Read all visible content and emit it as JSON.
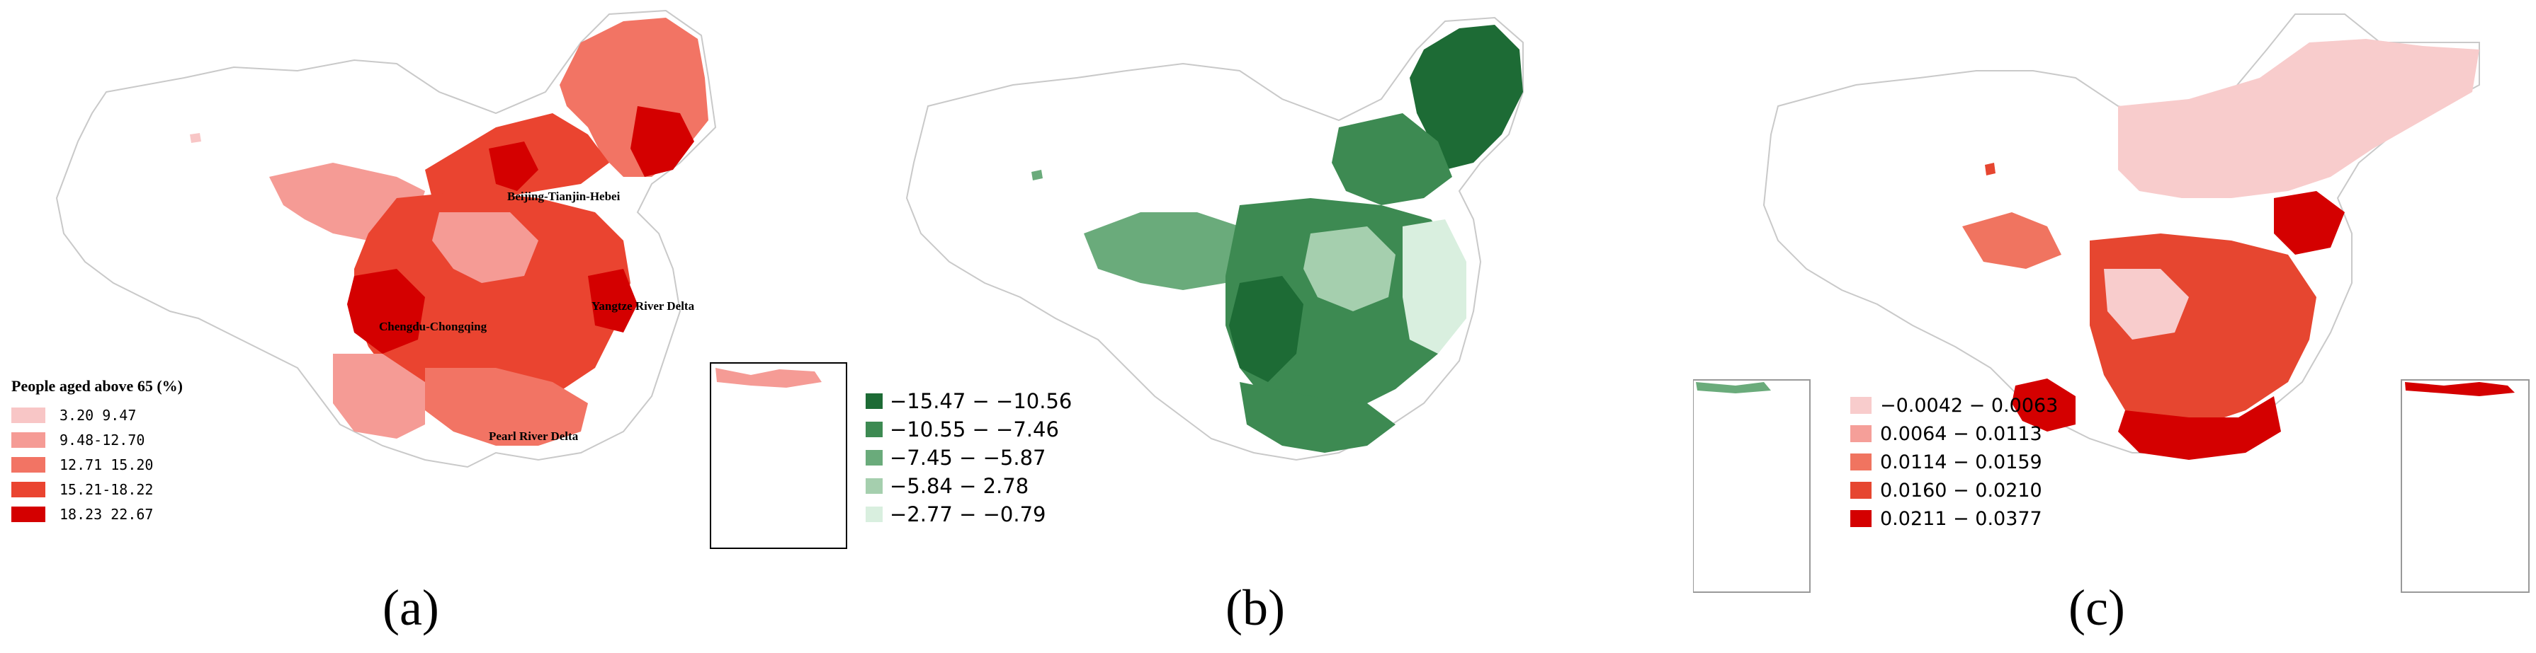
{
  "panels": [
    {
      "label": "(a)",
      "legend_title": "People aged above 65 (%)",
      "legend": [
        {
          "text": "3.20  9.47",
          "color": "#f8c6c6"
        },
        {
          "text": "9.48-12.70",
          "color": "#f59b95"
        },
        {
          "text": "12.71  15.20",
          "color": "#f27464"
        },
        {
          "text": "15.21-18.22",
          "color": "#ea4430"
        },
        {
          "text": "18.23  22.67",
          "color": "#d40000"
        }
      ],
      "regions": [
        "Beijing-Tianjin-Hebei",
        "Yangtze River Delta",
        "Chengdu-Chongqing",
        "Pearl River Delta"
      ]
    },
    {
      "label": "(b)",
      "legend": [
        {
          "text": "−15.47 − −10.56",
          "color": "#1d6b35"
        },
        {
          "text": "−10.55 − −7.46",
          "color": "#3d8a52"
        },
        {
          "text": "−7.45 − −5.87",
          "color": "#6aab7b"
        },
        {
          "text": "−5.84 − 2.78",
          "color": "#a5cfae"
        },
        {
          "text": "−2.77 − −0.79",
          "color": "#d9efdf"
        }
      ]
    },
    {
      "label": "(c)",
      "legend": [
        {
          "text": "−0.0042 − 0.0063",
          "color": "#f8cccc"
        },
        {
          "text": "0.0064 − 0.0113",
          "color": "#f59f99"
        },
        {
          "text": "0.0114 − 0.0159",
          "color": "#f07460"
        },
        {
          "text": "0.0160 − 0.0210",
          "color": "#e64630"
        },
        {
          "text": "0.0211 − 0.0377",
          "color": "#d40000"
        }
      ]
    }
  ]
}
